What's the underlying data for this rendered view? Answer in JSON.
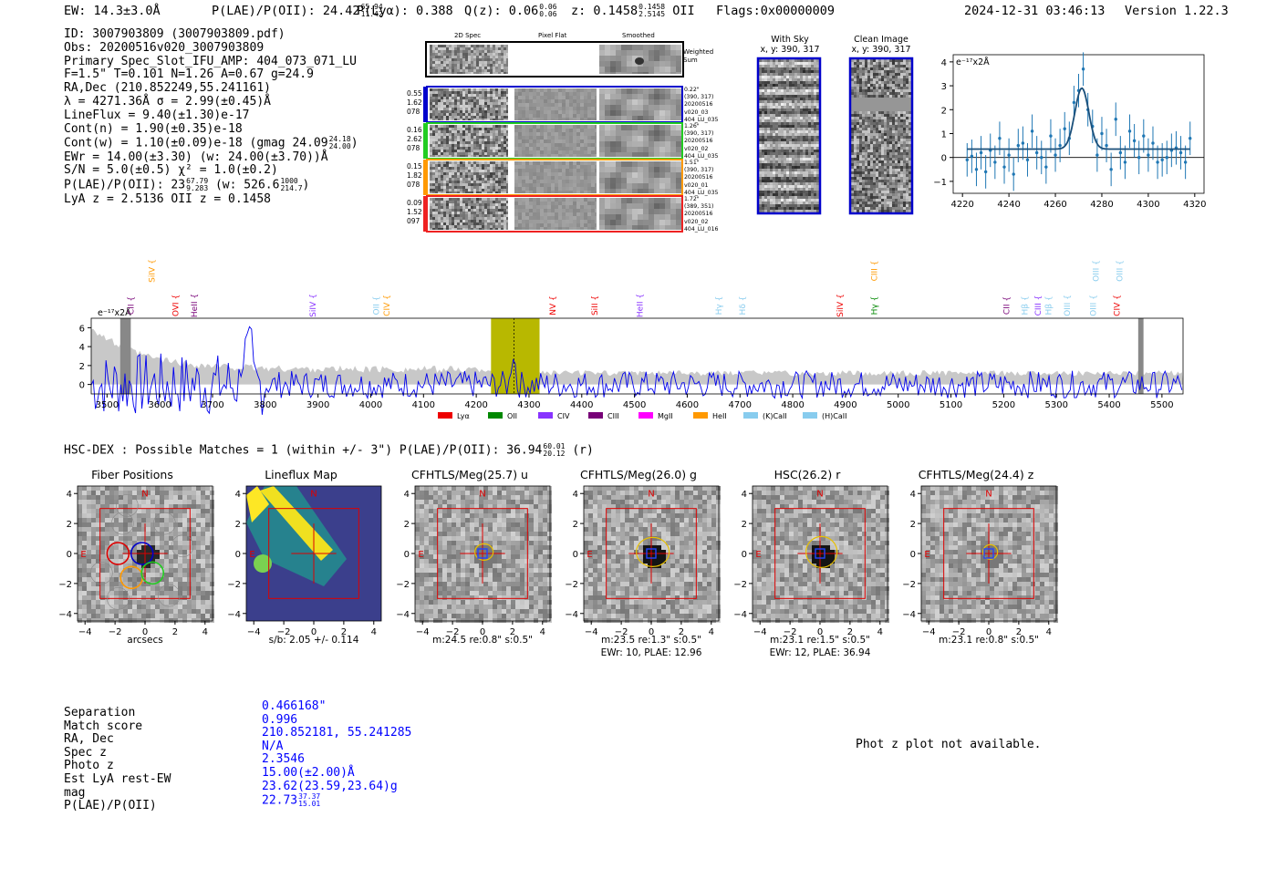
{
  "header": {
    "ew": "EW: 14.3±3.0Å",
    "plae_label": "P(LAE)/P(OII): 24.42",
    "plae_hi": "65.94",
    "plae_lo": "11.42",
    "plya": "P(Lyα): 0.388",
    "qz_label": "Q(z): 0.06",
    "qz_hi": "0.06",
    "qz_lo": "0.06",
    "z_label": "z: 0.1458",
    "z_hi": "0.1458",
    "z_lo": "2.5145",
    "z_line": "OII",
    "flags": "Flags:0x00000009",
    "timestamp": "2024-12-31 03:46:13",
    "version": "Version 1.22.3"
  },
  "info": {
    "id": "ID: 3007903809 (3007903809.pdf)",
    "obs": "Obs: 20200516v020_3007903809",
    "primary": "Primary Spec_Slot_IFU_AMP: 404_073_071_LU",
    "fiber": "F=1.5\"  T=0.101  N=1.26  A=0.67  g=24.9",
    "radec": "RA,Dec (210.852249,55.241161)",
    "lambda": "λ = 4271.36Å  σ = 2.99(±0.45)Å",
    "lineflux": "LineFlux = 9.40(±1.30)e-17",
    "contn": "Cont(n) = 1.90(±0.35)e-18",
    "contw": "Cont(w) = 1.10(±0.09)e-18 (gmag 24.09",
    "contw_hi": "24.18",
    "contw_lo": "24.00",
    "contw_end": ")",
    "ewr": "EWr = 14.00(±3.30) (w: 24.00(±3.70))Å",
    "sn": "S/N = 5.0(±0.5)  χ² = 1.0(±0.2)",
    "plae": "P(LAE)/P(OII): 23",
    "plae_hi": "67.79",
    "plae_lo": "9.283",
    "plae_w": "(w: 526.6",
    "plae_w_hi": "1000",
    "plae_w_lo": "214.7",
    "plae_w_end": ")",
    "lyaz": "LyA z = 2.5136  OII z = 0.1458"
  },
  "cutouts": {
    "col_2d": "2D Spec",
    "col_flat": "Pixel Flat",
    "col_smooth": "Smoothed",
    "weighted": "Weighted\nSum",
    "rows": [
      {
        "l1": "0.55",
        "l2": "1.62",
        "l3": "078",
        "r1": "0.22\"",
        "r2": "(390, 317)",
        "r3": "20200516",
        "r4": "v020_03",
        "r5": "404_LU_035",
        "color": "#0000cc"
      },
      {
        "l1": "0.16",
        "l2": "2.62",
        "l3": "078",
        "r1": "1.26\"",
        "r2": "(390, 317)",
        "r3": "20200516",
        "r4": "v020_02",
        "r5": "404_LU_035",
        "color": "#22cc22"
      },
      {
        "l1": "0.15",
        "l2": "1.82",
        "l3": "078",
        "r1": "1.51\"",
        "r2": "(390, 317)",
        "r3": "20200516",
        "r4": "v020_01",
        "r5": "404_LU_035",
        "color": "#ff9900"
      },
      {
        "l1": "0.09",
        "l2": "1.52",
        "l3": "097",
        "r1": "1.72\"",
        "r2": "(389, 351)",
        "r3": "20200516",
        "r4": "v020_02",
        "r5": "404_LU_016",
        "color": "#ee2222"
      }
    ]
  },
  "skyimages": {
    "with_sky": "With Sky",
    "with_sky_xy": "x, y: 390, 317",
    "clean": "Clean Image",
    "clean_xy": "x, y: 390, 317"
  },
  "zoom_unit": "e⁻¹⁷x2Å",
  "spec_unit": "e⁻¹⁷x2Å",
  "hsc": {
    "title": "HSC-DEX : Possible Matches = 1 (within +/- 3\")  P(LAE)/P(OII): 36.94",
    "hi": "60.01",
    "lo": "20.12",
    "band": "(r)"
  },
  "thumbs": [
    {
      "title": "Fiber Positions",
      "c1": "arcsecs",
      "c2": ""
    },
    {
      "title": "Lineflux Map",
      "c1": "s/b: 2.05 +/- 0.114",
      "c2": ""
    },
    {
      "title": "CFHTLS/Meg(25.7) u",
      "c1": "m:24.5  re:0.8\"  s:0.5\"",
      "c2": ""
    },
    {
      "title": "CFHTLS/Meg(26.0) g",
      "c1": "m:23.5  re:1.3\"  s:0.5\"",
      "c2": "EWr: 10, PLAE: 12.96"
    },
    {
      "title": "HSC(26.2) r",
      "c1": "m:23.1  re:1.5\"  s:0.5\"",
      "c2": "EWr: 12, PLAE: 36.94"
    },
    {
      "title": "CFHTLS/Meg(24.4) z",
      "c1": "m:23.1  re:0.8\"  s:0.5\"",
      "c2": ""
    }
  ],
  "thumb_marks": {
    "n": "N",
    "e": "E"
  },
  "bottom": {
    "labels": [
      "Separation",
      "Match score",
      "RA, Dec",
      "Spec z",
      "Photo z",
      "Est LyA rest-EW",
      "mag",
      "P(LAE)/P(OII)"
    ],
    "values": [
      "0.466168\"",
      "0.996",
      "210.852181, 55.241285",
      "N/A",
      "2.3546",
      "15.00(±2.00)Å",
      "23.62(23.59,23.64)g",
      "22.73"
    ],
    "plae_hi": "37.37",
    "plae_lo": "15.01",
    "photz": "Phot z plot not available."
  },
  "legend": [
    {
      "name": "Lyα",
      "color": "#ee0000"
    },
    {
      "name": "OII",
      "color": "#008800"
    },
    {
      "name": "CIV",
      "color": "#8833ff"
    },
    {
      "name": "CIII",
      "color": "#770077"
    },
    {
      "name": "MgII",
      "color": "#ff00ff"
    },
    {
      "name": "HeII",
      "color": "#ff9900"
    },
    {
      "name": "(K)CaII",
      "color": "#88ccee"
    },
    {
      "name": "(H)CaII",
      "color": "#88ccee"
    }
  ],
  "chart_data": [
    {
      "type": "line",
      "title": "",
      "xlabel": "",
      "ylabel": "e-17 x2Å",
      "xlim": [
        4216,
        4324
      ],
      "ylim": [
        -1.5,
        4.3
      ],
      "xticks": [
        4220,
        4240,
        4260,
        4280,
        4300,
        4320
      ],
      "yticks": [
        -1,
        0,
        1,
        2,
        3,
        4
      ],
      "gaussian": {
        "center": 4271.4,
        "sigma": 2.99,
        "amplitude": 2.55,
        "baseline": 0.35
      },
      "x": [
        4222,
        4224,
        4226,
        4228,
        4230,
        4232,
        4234,
        4236,
        4238,
        4240,
        4242,
        4244,
        4246,
        4248,
        4250,
        4252,
        4254,
        4256,
        4258,
        4260,
        4262,
        4264,
        4266,
        4268,
        4270,
        4272,
        4274,
        4276,
        4278,
        4280,
        4282,
        4284,
        4286,
        4288,
        4290,
        4292,
        4294,
        4296,
        4298,
        4300,
        4302,
        4304,
        4306,
        4308,
        4310,
        4312,
        4314,
        4316,
        4318
      ],
      "y": [
        -0.1,
        0.05,
        -0.5,
        0.2,
        -0.6,
        0.3,
        -0.2,
        0.8,
        -0.4,
        0.1,
        -0.7,
        0.5,
        0.6,
        -0.1,
        1.1,
        0.2,
        0.0,
        -0.4,
        0.9,
        0.1,
        0.5,
        1.2,
        0.8,
        2.3,
        2.8,
        3.7,
        2.0,
        1.3,
        0.1,
        1.0,
        0.5,
        -0.5,
        1.6,
        0.2,
        -0.2,
        1.1,
        0.7,
        0.0,
        0.9,
        0.1,
        0.6,
        -0.2,
        -0.1,
        0.0,
        0.3,
        0.4,
        0.2,
        -0.2,
        0.8
      ],
      "yerr": 0.7
    },
    {
      "type": "line",
      "title": "",
      "ylabel": "e-17 x2Å",
      "xlim": [
        3470,
        5540
      ],
      "ylim": [
        -1,
        7
      ],
      "xticks": [
        3500,
        3600,
        3700,
        3800,
        3900,
        4000,
        4100,
        4200,
        4300,
        4400,
        4500,
        4600,
        4700,
        4800,
        4900,
        5000,
        5100,
        5200,
        5300,
        5400,
        5500
      ],
      "yticks": [
        0,
        2,
        4,
        6
      ],
      "highlight": {
        "start": 4228,
        "end": 4320,
        "peak": 4271.4
      },
      "line_markers": [
        {
          "label": "CII",
          "x": 3545,
          "color": "#770077",
          "row": "low"
        },
        {
          "label": "SiIV",
          "x": 3585,
          "color": "#ff9900",
          "row": "high"
        },
        {
          "label": "OVI",
          "x": 3630,
          "color": "#ee0000",
          "row": "low"
        },
        {
          "label": "HeII",
          "x": 3665,
          "color": "#770077",
          "row": "low"
        },
        {
          "label": "SiIV",
          "x": 3890,
          "color": "#8833ff",
          "row": "low"
        },
        {
          "label": "OII",
          "x": 4010,
          "color": "#88ccee",
          "row": "low"
        },
        {
          "label": "CIV",
          "x": 4030,
          "color": "#ff9900",
          "row": "low"
        },
        {
          "label": "NV",
          "x": 4345,
          "color": "#ee0000",
          "row": "low"
        },
        {
          "label": "SiII",
          "x": 4425,
          "color": "#ee0000",
          "row": "low"
        },
        {
          "label": "HeII",
          "x": 4510,
          "color": "#8833ff",
          "row": "low"
        },
        {
          "label": "Hγ",
          "x": 4660,
          "color": "#88ccee",
          "row": "low"
        },
        {
          "label": "Hδ",
          "x": 4705,
          "color": "#88ccee",
          "row": "low"
        },
        {
          "label": "SiIV",
          "x": 4890,
          "color": "#ee0000",
          "row": "low"
        },
        {
          "label": "CIII",
          "x": 4955,
          "color": "#ff9900",
          "row": "high"
        },
        {
          "label": "Hγ",
          "x": 4955,
          "color": "#008800",
          "row": "low"
        },
        {
          "label": "CII",
          "x": 5205,
          "color": "#770077",
          "row": "low"
        },
        {
          "label": "Hβ",
          "x": 5240,
          "color": "#88ccee",
          "row": "low"
        },
        {
          "label": "CIII",
          "x": 5265,
          "color": "#8833ff",
          "row": "low"
        },
        {
          "label": "Hβ",
          "x": 5285,
          "color": "#88ccee",
          "row": "low"
        },
        {
          "label": "OIII",
          "x": 5320,
          "color": "#88ccee",
          "row": "low"
        },
        {
          "label": "OIII",
          "x": 5370,
          "color": "#88ccee",
          "row": "low"
        },
        {
          "label": "OIII",
          "x": 5375,
          "color": "#88ccee",
          "row": "high"
        },
        {
          "label": "OIII",
          "x": 5420,
          "color": "#88ccee",
          "row": "high"
        },
        {
          "label": "CIV",
          "x": 5415,
          "color": "#ee0000",
          "row": "low"
        }
      ]
    }
  ]
}
